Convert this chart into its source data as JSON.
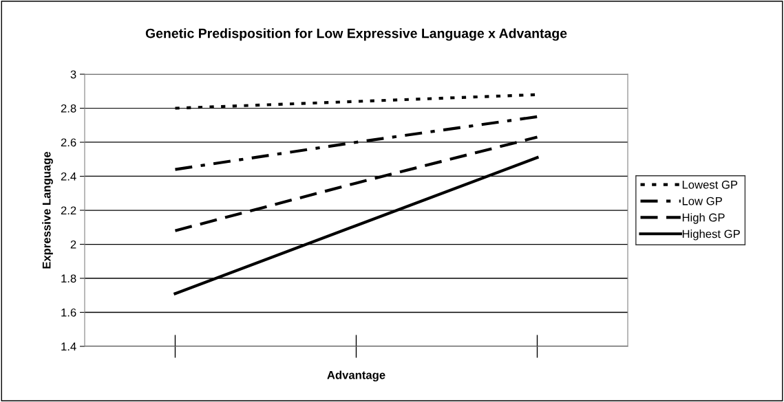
{
  "chart_data": {
    "type": "line",
    "title": "Genetic Predisposition for Low Expressive Language x Advantage",
    "xlabel": "Advantage",
    "ylabel": "Expressive Language",
    "categories": [
      null,
      null,
      null
    ],
    "series": [
      {
        "name": "Lowest GP",
        "color": "#000000",
        "values": [
          2.8,
          2.84,
          2.88
        ],
        "line_style": "dotted"
      },
      {
        "name": "Low GP",
        "color": "#000000",
        "values": [
          2.44,
          2.6,
          2.75
        ],
        "line_style": "dashdot"
      },
      {
        "name": "High GP",
        "color": "#000000",
        "values": [
          2.08,
          2.36,
          2.63
        ],
        "line_style": "dashed"
      },
      {
        "name": "Highest GP",
        "color": "#000000",
        "values": [
          1.71,
          2.11,
          2.51
        ],
        "line_style": "solid"
      }
    ],
    "ylim": [
      1.4,
      3
    ],
    "yticks": [
      1.4,
      1.6,
      1.8,
      2,
      2.2,
      2.4,
      2.6,
      2.8,
      3
    ],
    "grid": "y",
    "legend": "right",
    "marker": "none"
  }
}
